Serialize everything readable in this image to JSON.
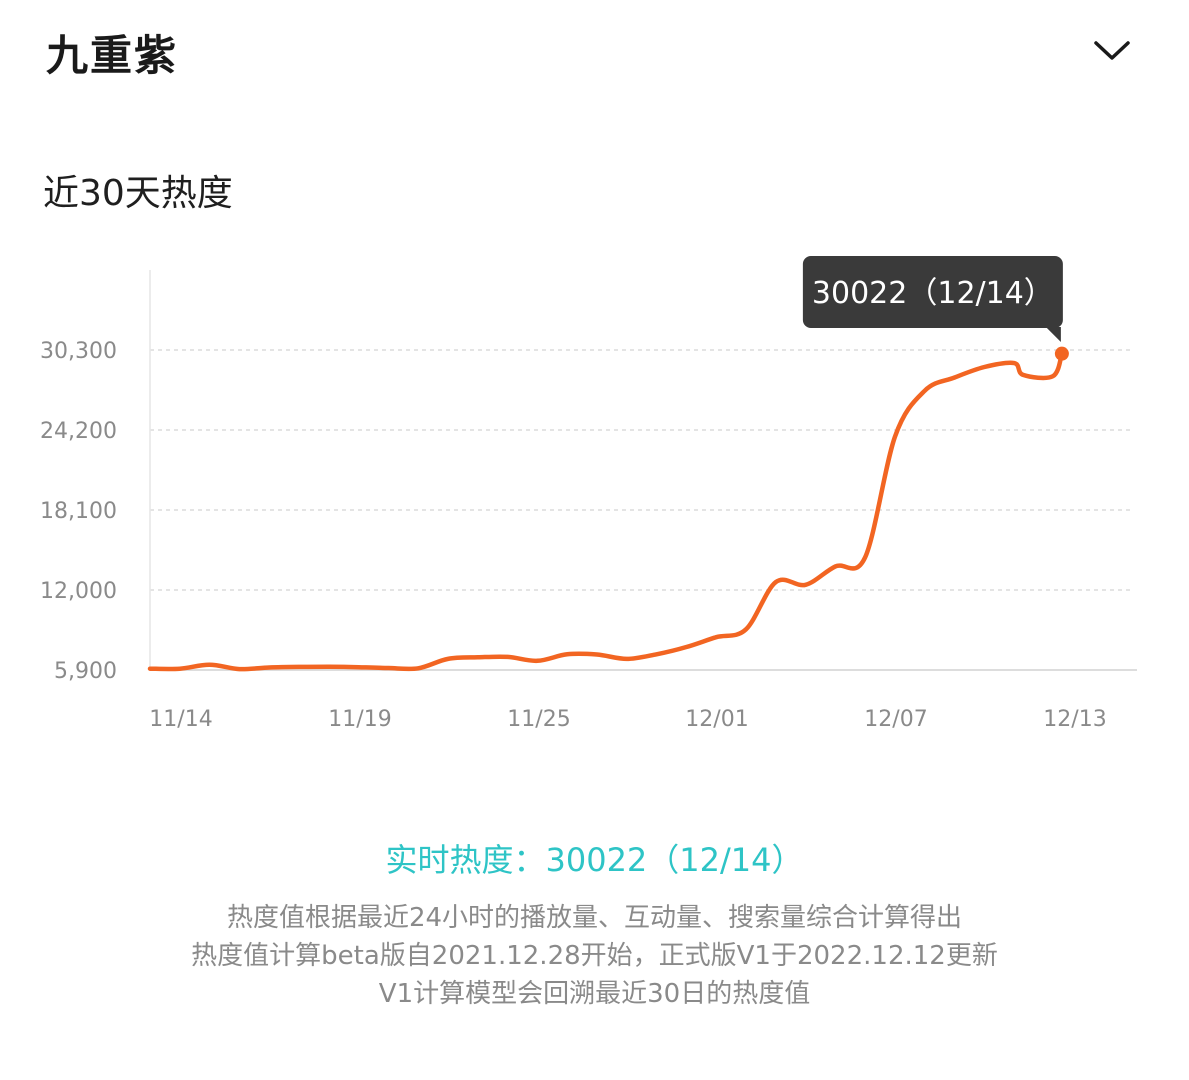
{
  "header": {
    "title": "九重紫"
  },
  "section": {
    "title": "近30天热度"
  },
  "chart_data": {
    "type": "line",
    "title": "近30天热度",
    "x_tick_labels": [
      "11/14",
      "11/19",
      "11/25",
      "12/01",
      "12/07",
      "12/13"
    ],
    "y_tick_labels": [
      "5,900",
      "12,000",
      "18,100",
      "24,200",
      "30,300"
    ],
    "y_ticks": [
      5900,
      12000,
      18100,
      24200,
      30300
    ],
    "ylim": [
      5900,
      30300
    ],
    "xlim": [
      0,
      30
    ],
    "series": [
      {
        "color": "#f26522",
        "points": [
          [
            0,
            6000
          ],
          [
            1,
            6000
          ],
          [
            2,
            6300
          ],
          [
            3,
            5970
          ],
          [
            4,
            6090
          ],
          [
            5,
            6140
          ],
          [
            6,
            6150
          ],
          [
            7,
            6110
          ],
          [
            8,
            6050
          ],
          [
            9,
            6030
          ],
          [
            10,
            6750
          ],
          [
            11,
            6870
          ],
          [
            12,
            6900
          ],
          [
            13,
            6600
          ],
          [
            14,
            7100
          ],
          [
            15,
            7080
          ],
          [
            16,
            6750
          ],
          [
            17,
            7100
          ],
          [
            18,
            7650
          ],
          [
            19,
            8400
          ],
          [
            20,
            9000
          ],
          [
            21,
            12600
          ],
          [
            22,
            12400
          ],
          [
            23,
            13800
          ],
          [
            24,
            14500
          ],
          [
            25,
            23700
          ],
          [
            26,
            27200
          ],
          [
            27,
            28200
          ],
          [
            28,
            29000
          ],
          [
            29,
            29300
          ],
          [
            29.3,
            28400
          ],
          [
            30.3,
            28300
          ],
          [
            30.6,
            30022
          ]
        ]
      }
    ],
    "grid": true,
    "highlight": {
      "value": 30022,
      "date": "12/14"
    },
    "tooltip_text": "30022（12/14）"
  },
  "realtime": {
    "text": "实时热度：30022（12/14）"
  },
  "notes": {
    "line1": "热度值根据最近24小时的播放量、互动量、搜索量综合计算得出",
    "line2": "热度值计算beta版自2021.12.28开始，正式版V1于2022.12.12更新",
    "line3": "V1计算模型会回溯最近30日的热度值"
  },
  "colors": {
    "line": "#f26522",
    "accent": "#2ec4c6",
    "tooltip_bg": "#3a3a3a"
  }
}
